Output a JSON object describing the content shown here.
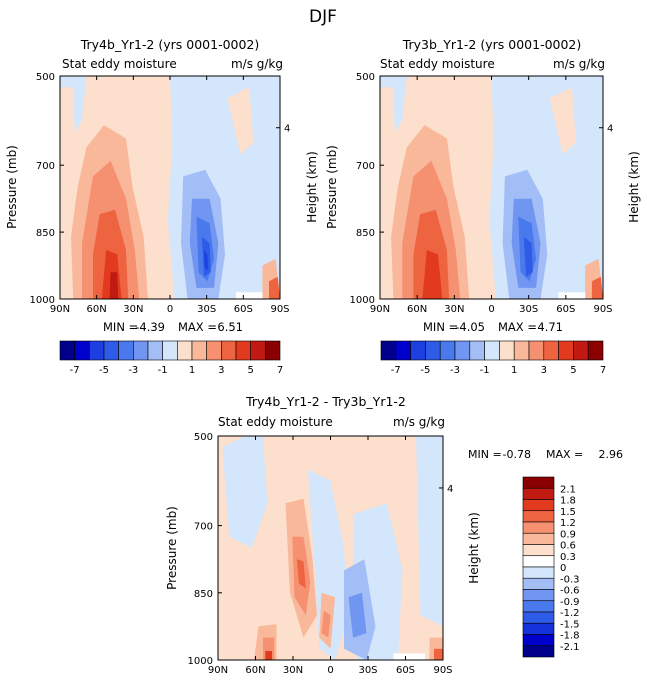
{
  "page_title": "DJF",
  "chart_data": [
    {
      "id": "panel-a",
      "type": "heatmap",
      "title": "Try4b_Yr1-2 (yrs 0001-0002)",
      "subtitle_left": "Stat eddy moisture",
      "subtitle_right": "m/s g/kg",
      "ylabel": "Pressure (mb)",
      "ylabel_right": "Height (km)",
      "x_ticks": [
        "90N",
        "60N",
        "30N",
        "0",
        "30S",
        "60S",
        "90S"
      ],
      "x_values": [
        90,
        60,
        30,
        0,
        -30,
        -60,
        -90
      ],
      "xlim": [
        90,
        -90
      ],
      "y_ticks": [
        "500",
        "700",
        "850",
        "1000"
      ],
      "y_values": [
        500,
        700,
        850,
        1000
      ],
      "ylim": [
        500,
        1000
      ],
      "right_ticks": [
        "4"
      ],
      "right_tick_pressure": 616,
      "min_label": "MIN =",
      "min_value": "-4.39",
      "max_label": "MAX =",
      "max_value": "6.51",
      "levels": [
        -7,
        -6,
        -5,
        -4,
        -3,
        -2,
        -1,
        0,
        1,
        2,
        3,
        4,
        5,
        6,
        7
      ],
      "colorbar_labels": [
        "-7",
        "-5",
        "-3",
        "-1",
        "1",
        "3",
        "5",
        "7"
      ]
    },
    {
      "id": "panel-b",
      "type": "heatmap",
      "title": "Try3b_Yr1-2 (yrs 0001-0002)",
      "subtitle_left": "Stat eddy moisture",
      "subtitle_right": "m/s g/kg",
      "ylabel": "Pressure (mb)",
      "ylabel_right": "Height (km)",
      "x_ticks": [
        "90N",
        "60N",
        "30N",
        "0",
        "30S",
        "60S",
        "90S"
      ],
      "x_values": [
        90,
        60,
        30,
        0,
        -30,
        -60,
        -90
      ],
      "xlim": [
        90,
        -90
      ],
      "y_ticks": [
        "500",
        "700",
        "850",
        "1000"
      ],
      "y_values": [
        500,
        700,
        850,
        1000
      ],
      "ylim": [
        500,
        1000
      ],
      "right_ticks": [
        "4"
      ],
      "right_tick_pressure": 616,
      "min_label": "MIN =",
      "min_value": "-4.05",
      "max_label": "MAX =",
      "max_value": "4.71",
      "levels": [
        -7,
        -6,
        -5,
        -4,
        -3,
        -2,
        -1,
        0,
        1,
        2,
        3,
        4,
        5,
        6,
        7
      ],
      "colorbar_labels": [
        "-7",
        "-5",
        "-3",
        "-1",
        "1",
        "3",
        "5",
        "7"
      ]
    },
    {
      "id": "panel-diff",
      "type": "heatmap",
      "title": "Try4b_Yr1-2 - Try3b_Yr1-2",
      "subtitle_left": "Stat eddy moisture",
      "subtitle_right": "m/s g/kg",
      "ylabel": "Pressure (mb)",
      "ylabel_right": "Height (km)",
      "x_ticks": [
        "90N",
        "60N",
        "30N",
        "0",
        "30S",
        "60S",
        "90S"
      ],
      "x_values": [
        90,
        60,
        30,
        0,
        -30,
        -60,
        -90
      ],
      "xlim": [
        90,
        -90
      ],
      "y_ticks": [
        "500",
        "700",
        "850",
        "1000"
      ],
      "y_values": [
        500,
        700,
        850,
        1000
      ],
      "ylim": [
        500,
        1000
      ],
      "right_ticks": [
        "4"
      ],
      "right_tick_pressure": 616,
      "min_label": "MIN =",
      "min_value": "-0.78",
      "max_label": "MAX =",
      "max_value": "2.96",
      "colorbar_labels": [
        "2.1",
        "1.8",
        "1.5",
        "1.2",
        "0.9",
        "0.6",
        "0.3",
        "0",
        "-0.3",
        "-0.6",
        "-0.9",
        "-1.2",
        "-1.5",
        "-1.8",
        "-2.1"
      ]
    }
  ],
  "colors": {
    "palette": [
      "#00008b",
      "#0000cd",
      "#1e3fe0",
      "#2e5ce8",
      "#4a79ee",
      "#7196f2",
      "#a3bef6",
      "#d4e6fb",
      "#fcdfcc",
      "#f9b89a",
      "#f59070",
      "#ef6440",
      "#e23a1e",
      "#c01a12",
      "#8b0000"
    ],
    "diff_palette": [
      "#00008b",
      "#0000cd",
      "#1432dc",
      "#2e5ce8",
      "#4a79ee",
      "#7196f2",
      "#a3bef6",
      "#d4e6fb",
      "#ffffff",
      "#fcdfcc",
      "#f9b89a",
      "#f59070",
      "#ef6440",
      "#e23a1e",
      "#c01a12",
      "#8b0000"
    ]
  }
}
